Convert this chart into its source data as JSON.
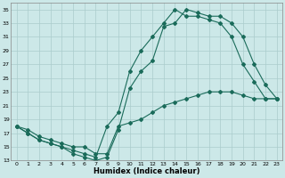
{
  "xlabel": "Humidex (Indice chaleur)",
  "bg_color": "#cce8e8",
  "line_color": "#1a6b5a",
  "marker": "D",
  "marker_size": 2.0,
  "xlim": [
    -0.5,
    23.5
  ],
  "ylim": [
    13,
    36
  ],
  "xticks": [
    0,
    1,
    2,
    3,
    4,
    5,
    6,
    7,
    8,
    9,
    10,
    11,
    12,
    13,
    14,
    15,
    16,
    17,
    18,
    19,
    20,
    21,
    22,
    23
  ],
  "yticks": [
    13,
    15,
    17,
    19,
    21,
    23,
    25,
    27,
    29,
    31,
    33,
    35
  ],
  "grid_color": "#aacccc",
  "curve1_x": [
    0,
    1,
    2,
    3,
    4,
    5,
    6,
    7,
    8,
    9,
    10,
    11,
    12,
    13,
    14,
    15,
    16,
    17,
    18,
    19,
    20,
    21,
    22,
    23
  ],
  "curve1_y": [
    18,
    17,
    16,
    15.5,
    15,
    14.5,
    14,
    13.5,
    18,
    20,
    26,
    29,
    31,
    33,
    35,
    34,
    34,
    33.5,
    33,
    31,
    27,
    24.5,
    22,
    22
  ],
  "curve2_x": [
    0,
    1,
    2,
    3,
    4,
    5,
    6,
    7,
    8,
    9,
    10,
    11,
    12,
    13,
    14,
    15,
    16,
    17,
    18,
    19,
    20,
    21,
    22,
    23
  ],
  "curve2_y": [
    18,
    17,
    16,
    15.5,
    15,
    14,
    13.5,
    13,
    13.5,
    17.5,
    23.5,
    26,
    27.5,
    32.5,
    33,
    35,
    34.5,
    34,
    34,
    33,
    31,
    27,
    24,
    22
  ],
  "curve3_x": [
    0,
    1,
    2,
    3,
    4,
    5,
    6,
    7,
    8,
    9,
    10,
    11,
    12,
    13,
    14,
    15,
    16,
    17,
    18,
    19,
    20,
    21,
    22,
    23
  ],
  "curve3_y": [
    18,
    17.5,
    16.5,
    16,
    15.5,
    15,
    15,
    14,
    14,
    18,
    18.5,
    19,
    20,
    21,
    21.5,
    22,
    22.5,
    23,
    23,
    23,
    22.5,
    22,
    22,
    22
  ]
}
